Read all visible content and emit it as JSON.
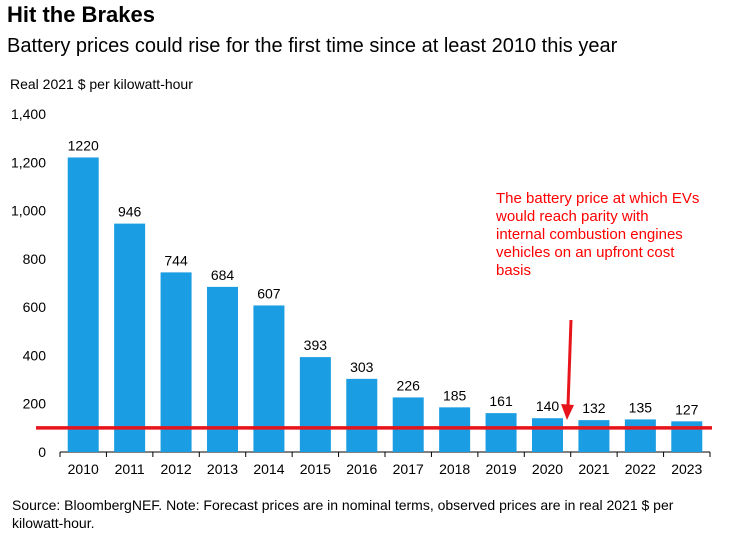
{
  "header": {
    "title": "Hit the Brakes",
    "subtitle": "Battery prices could rise for the first time since at least 2010 this year",
    "unit_label": "Real 2021 $ per kilowatt-hour"
  },
  "annotation": {
    "text": "The battery price at which EVs would reach parity with internal combustion engines vehicles on an upfront cost basis"
  },
  "footer": {
    "source": "Source: BloombergNEF. Note: Forecast prices are in nominal terms, observed prices are in real 2021 $ per kilowatt-hour."
  },
  "colors": {
    "bar": "#1a9de2",
    "parity_line": "#e8141c",
    "annotation": "#ff0000"
  },
  "chart_data": {
    "type": "bar",
    "categories": [
      "2010",
      "2011",
      "2012",
      "2013",
      "2014",
      "2015",
      "2016",
      "2017",
      "2018",
      "2019",
      "2020",
      "2021",
      "2022",
      "2023"
    ],
    "values": [
      1220,
      946,
      744,
      684,
      607,
      393,
      303,
      226,
      185,
      161,
      140,
      132,
      135,
      127
    ],
    "data_labels": [
      "1220",
      "946",
      "744",
      "684",
      "607",
      "393",
      "303",
      "226",
      "185",
      "161",
      "140",
      "132",
      "135",
      "127"
    ],
    "ylim": [
      0,
      1400
    ],
    "yticks": [
      0,
      200,
      400,
      600,
      800,
      1000,
      1200,
      1400
    ],
    "ytick_labels": [
      "0",
      "200",
      "400",
      "600",
      "800",
      "1,000",
      "1,200",
      "1,400"
    ],
    "reference_line": 100,
    "grid": false
  }
}
